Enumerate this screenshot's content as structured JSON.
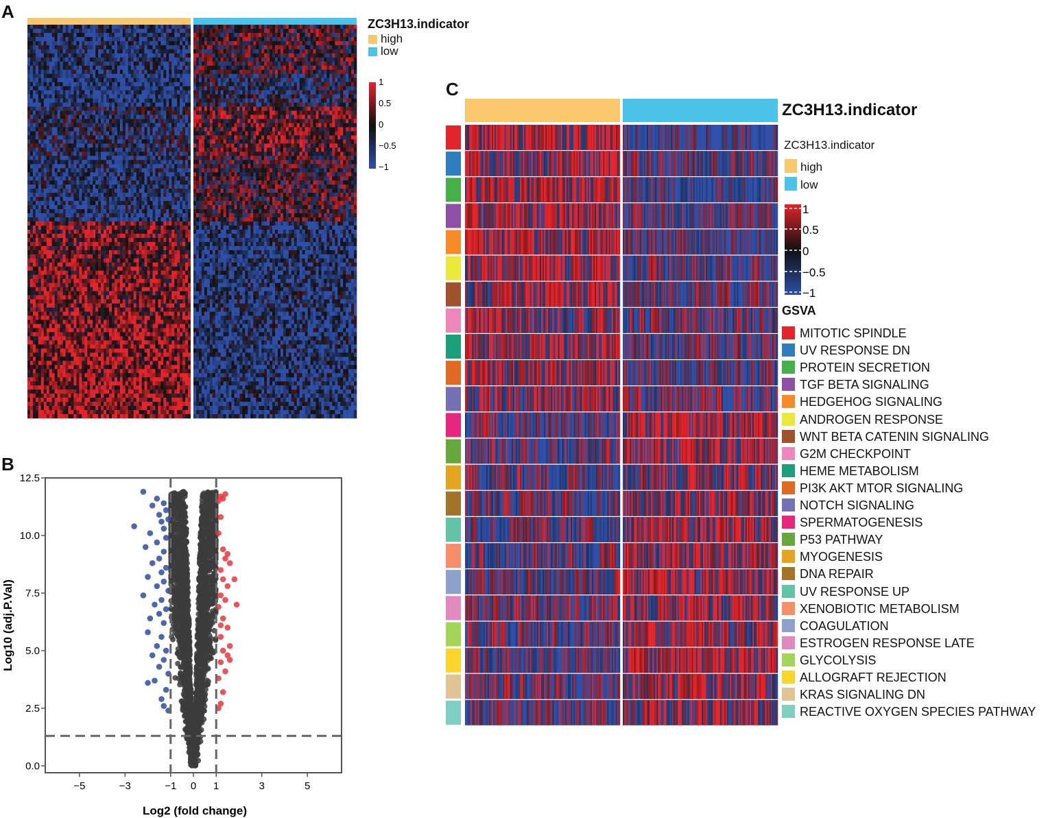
{
  "panels": {
    "a": "A",
    "b": "B",
    "c": "C"
  },
  "colors": {
    "high": "#F9C86E",
    "low": "#4BC3E8",
    "heat_pos": "#E3242B",
    "heat_mid": "#111111",
    "heat_neg": "#2E4FA8",
    "volcano_up": "#E8363C",
    "volcano_down": "#2F4DA0",
    "volcano_ns": "#3C3C3C",
    "axis": "#555555"
  },
  "panel_a": {
    "legend_title": "ZC3H13.indicator",
    "groups": [
      {
        "label": "high",
        "color": "#F9C86E"
      },
      {
        "label": "low",
        "color": "#4BC3E8"
      }
    ],
    "scale_ticks": [
      "1",
      "0.5",
      "0",
      "−0.5",
      "−1"
    ]
  },
  "chart_data": [
    {
      "type": "heatmap",
      "title": "ZC3H13.indicator",
      "groups": [
        "high",
        "low"
      ],
      "value_range": [
        -1,
        1
      ],
      "n_row_blocks": 24,
      "description_text": ""
    },
    {
      "type": "scatter",
      "title": "",
      "xlabel": "Log2 (fold change)",
      "ylabel": "Log10 (adj.P.Val)",
      "xlim": [
        -6.5,
        6.5
      ],
      "ylim": [
        -0.3,
        12.5
      ],
      "x_ticks": [
        "−5",
        "−3",
        "−1",
        "0",
        "1",
        "3",
        "5"
      ],
      "x_tick_values": [
        -5,
        -3,
        -1,
        0,
        1,
        3,
        5
      ],
      "y_ticks": [
        "12.5",
        "10.0",
        "7.5",
        "5.0",
        "2.5",
        "0.0"
      ],
      "y_tick_values": [
        12.5,
        10.0,
        7.5,
        5.0,
        2.5,
        0.0
      ],
      "thresholds": {
        "x": [
          -1,
          1
        ],
        "y": 1.3
      },
      "up_points": [
        [
          1.2,
          11.7
        ],
        [
          1.3,
          11.6
        ],
        [
          1.1,
          11.5
        ],
        [
          1.4,
          11.8
        ],
        [
          1.2,
          10.8
        ],
        [
          1.1,
          10.1
        ],
        [
          1.3,
          9.4
        ],
        [
          1.5,
          9.2
        ],
        [
          1.4,
          9.0
        ],
        [
          1.6,
          8.8
        ],
        [
          1.2,
          8.5
        ],
        [
          1.3,
          8.1
        ],
        [
          1.8,
          8.1
        ],
        [
          1.5,
          7.8
        ],
        [
          1.2,
          7.4
        ],
        [
          1.4,
          7.2
        ],
        [
          1.9,
          7.0
        ],
        [
          1.1,
          6.9
        ],
        [
          1.3,
          6.4
        ],
        [
          1.5,
          6.0
        ],
        [
          1.2,
          5.6
        ],
        [
          1.6,
          5.2
        ],
        [
          1.3,
          5.0
        ],
        [
          1.5,
          4.8
        ],
        [
          1.2,
          4.5
        ],
        [
          1.4,
          4.1
        ],
        [
          1.1,
          3.8
        ],
        [
          1.3,
          3.2
        ],
        [
          1.2,
          2.7
        ],
        [
          1.1,
          2.5
        ],
        [
          1.6,
          4.6
        ],
        [
          1.2,
          6.1
        ]
      ],
      "down_points": [
        [
          -2.2,
          11.9
        ],
        [
          -1.6,
          11.6
        ],
        [
          -1.3,
          11.4
        ],
        [
          -1.8,
          11.3
        ],
        [
          -1.2,
          11.1
        ],
        [
          -1.5,
          10.9
        ],
        [
          -1.1,
          10.7
        ],
        [
          -1.4,
          10.6
        ],
        [
          -2.6,
          10.4
        ],
        [
          -1.3,
          10.3
        ],
        [
          -1.9,
          10.1
        ],
        [
          -1.2,
          9.9
        ],
        [
          -1.6,
          9.7
        ],
        [
          -2.1,
          9.5
        ],
        [
          -1.3,
          9.3
        ],
        [
          -1.5,
          9.0
        ],
        [
          -1.8,
          8.8
        ],
        [
          -1.2,
          8.6
        ],
        [
          -1.4,
          8.4
        ],
        [
          -2.0,
          8.2
        ],
        [
          -1.3,
          8.0
        ],
        [
          -1.6,
          7.8
        ],
        [
          -1.1,
          7.6
        ],
        [
          -2.2,
          7.4
        ],
        [
          -1.4,
          7.2
        ],
        [
          -1.7,
          7.0
        ],
        [
          -1.2,
          6.8
        ],
        [
          -1.5,
          6.6
        ],
        [
          -1.9,
          6.4
        ],
        [
          -1.3,
          6.2
        ],
        [
          -2.0,
          5.8
        ],
        [
          -1.4,
          5.6
        ],
        [
          -1.6,
          5.2
        ],
        [
          -1.2,
          5.0
        ],
        [
          -1.8,
          4.8
        ],
        [
          -1.3,
          4.6
        ],
        [
          -1.5,
          4.3
        ],
        [
          -1.1,
          4.0
        ],
        [
          -1.7,
          3.7
        ],
        [
          -2.0,
          3.6
        ],
        [
          -1.2,
          3.3
        ],
        [
          -1.4,
          2.9
        ],
        [
          -1.3,
          2.6
        ],
        [
          -1.1,
          2.4
        ]
      ]
    },
    {
      "type": "heatmap",
      "title": "ZC3H13.indicator",
      "legend_subtitle": "ZC3H13.indicator",
      "groups": [
        "high",
        "low"
      ],
      "value_range": [
        -1,
        1
      ],
      "scale_ticks": [
        "1",
        "0.5",
        "0",
        "−0.5",
        "−1"
      ],
      "row_annotation_title": "GSVA",
      "rows": [
        {
          "label": "MITOTIC SPINDLE",
          "color": "#E3242B",
          "bias": 0.6
        },
        {
          "label": "UV RESPONSE DN",
          "color": "#2E7EBE",
          "bias": 0.3
        },
        {
          "label": "PROTEIN SECRETION",
          "color": "#45B049",
          "bias": 0.5
        },
        {
          "label": "TGF BETA SIGNALING",
          "color": "#8E4FA5",
          "bias": 0.3
        },
        {
          "label": "HEDGEHOG SIGNALING",
          "color": "#F68B27",
          "bias": 0.4
        },
        {
          "label": "ANDROGEN RESPONSE",
          "color": "#EAE83A",
          "bias": 0.3
        },
        {
          "label": "WNT BETA CATENIN SIGNALING",
          "color": "#A0522D",
          "bias": 0.3
        },
        {
          "label": "G2M CHECKPOINT",
          "color": "#EE86BE",
          "bias": 0.2
        },
        {
          "label": "HEME METABOLISM",
          "color": "#1E9E7A",
          "bias": 0.3
        },
        {
          "label": "PI3K AKT MTOR SIGNALING",
          "color": "#E06A22",
          "bias": 0.4
        },
        {
          "label": "NOTCH SIGNALING",
          "color": "#7470B5",
          "bias": 0.2
        },
        {
          "label": "SPERMATOGENESIS",
          "color": "#E5287D",
          "bias": -0.3
        },
        {
          "label": "P53 PATHWAY",
          "color": "#66A63A",
          "bias": -0.2
        },
        {
          "label": "MYOGENESIS",
          "color": "#E3A41F",
          "bias": -0.2
        },
        {
          "label": "DNA REPAIR",
          "color": "#A3732A",
          "bias": -0.3
        },
        {
          "label": "UV RESPONSE UP",
          "color": "#62C3A7",
          "bias": -0.3
        },
        {
          "label": "XENOBIOTIC METABOLISM",
          "color": "#F58E69",
          "bias": -0.2
        },
        {
          "label": "COAGULATION",
          "color": "#8DA0CB",
          "bias": -0.3
        },
        {
          "label": "ESTROGEN RESPONSE LATE",
          "color": "#E08ABF",
          "bias": -0.2
        },
        {
          "label": "GLYCOLYSIS",
          "color": "#A5D45A",
          "bias": -0.2
        },
        {
          "label": "ALLOGRAFT REJECTION",
          "color": "#FBD52E",
          "bias": -0.4
        },
        {
          "label": "KRAS SIGNALING DN",
          "color": "#E0C494",
          "bias": -0.3
        },
        {
          "label": "REACTIVE OXYGEN SPECIES PATHWAY",
          "color": "#7FCFC3",
          "bias": -0.2
        }
      ]
    }
  ]
}
